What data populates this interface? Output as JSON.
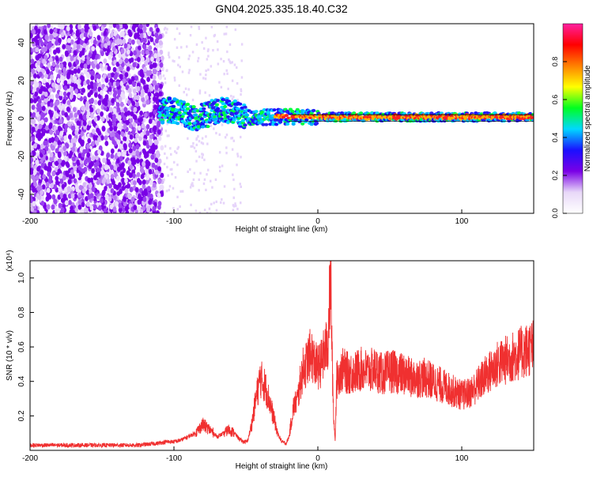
{
  "title": "GN04.2025.335.18.40.C32",
  "chart_data": [
    {
      "type": "heatmap",
      "title": "GN04.2025.335.18.40.C32",
      "xlabel": "Height of straight line (km)",
      "ylabel": "Frequency (Hz)",
      "xlim": [
        -200,
        150
      ],
      "ylim": [
        -50,
        50
      ],
      "x_ticks": [
        -200,
        -100,
        0,
        100
      ],
      "y_ticks": [
        -40,
        -20,
        0,
        20,
        40
      ],
      "colorbar": {
        "label": "Normalized spectral amplitude",
        "range": [
          0,
          1
        ],
        "ticks": [
          "0.0",
          "0.2",
          "0.4",
          "0.6",
          "0.8"
        ],
        "colors": [
          "#ffffff",
          "#e8d8f8",
          "#7a00e6",
          "#1a10ff",
          "#00d8ff",
          "#00ff20",
          "#ffff00",
          "#ff8000",
          "#ff0000",
          "#ff20a0"
        ]
      },
      "grid": false,
      "legend": "none"
    },
    {
      "type": "line",
      "xlabel": "Height of straight line (km)",
      "ylabel": "SNR (10 * v/v)",
      "y_multiplier": "(x10⁴)",
      "xlim": [
        -200,
        150
      ],
      "ylim": [
        0,
        1.1
      ],
      "x_ticks": [
        -200,
        -100,
        0,
        100
      ],
      "y_ticks": [
        "0.2",
        "0.4",
        "0.6",
        "0.8",
        "1.0"
      ],
      "line_color": "#f03030",
      "grid": false,
      "legend": "none",
      "series": [
        {
          "x": [
            -200,
            -185,
            -170,
            -155,
            -140,
            -125,
            -112,
            -105,
            -100,
            -95,
            -90,
            -85,
            -80,
            -75,
            -70,
            -65,
            -62,
            -58,
            -55,
            -52,
            -49,
            -46,
            -43,
            -40,
            -37,
            -34,
            -31,
            -28,
            -25,
            -22,
            -20,
            -17,
            -14,
            -12,
            -10,
            -8,
            -6,
            -4,
            -2,
            0,
            2,
            4,
            6,
            7,
            8,
            9,
            10,
            11,
            12,
            13,
            15,
            18,
            20,
            25,
            30,
            35,
            40,
            45,
            50,
            55,
            60,
            65,
            70,
            75,
            80,
            85,
            90,
            95,
            100,
            105,
            110,
            115,
            120,
            125,
            130,
            135,
            140,
            145,
            150
          ],
          "y": [
            0.03,
            0.03,
            0.03,
            0.03,
            0.03,
            0.03,
            0.04,
            0.05,
            0.05,
            0.06,
            0.08,
            0.1,
            0.15,
            0.12,
            0.08,
            0.1,
            0.12,
            0.1,
            0.07,
            0.05,
            0.05,
            0.15,
            0.3,
            0.42,
            0.38,
            0.3,
            0.2,
            0.1,
            0.05,
            0.04,
            0.08,
            0.25,
            0.3,
            0.4,
            0.48,
            0.5,
            0.55,
            0.55,
            0.5,
            0.48,
            0.5,
            0.55,
            0.6,
            0.62,
            0.85,
            1.0,
            0.5,
            0.2,
            0.05,
            0.4,
            0.45,
            0.47,
            0.45,
            0.45,
            0.47,
            0.46,
            0.47,
            0.44,
            0.46,
            0.45,
            0.44,
            0.42,
            0.42,
            0.42,
            0.4,
            0.38,
            0.36,
            0.34,
            0.32,
            0.33,
            0.37,
            0.42,
            0.46,
            0.5,
            0.52,
            0.54,
            0.56,
            0.58,
            0.6
          ]
        }
      ]
    }
  ]
}
